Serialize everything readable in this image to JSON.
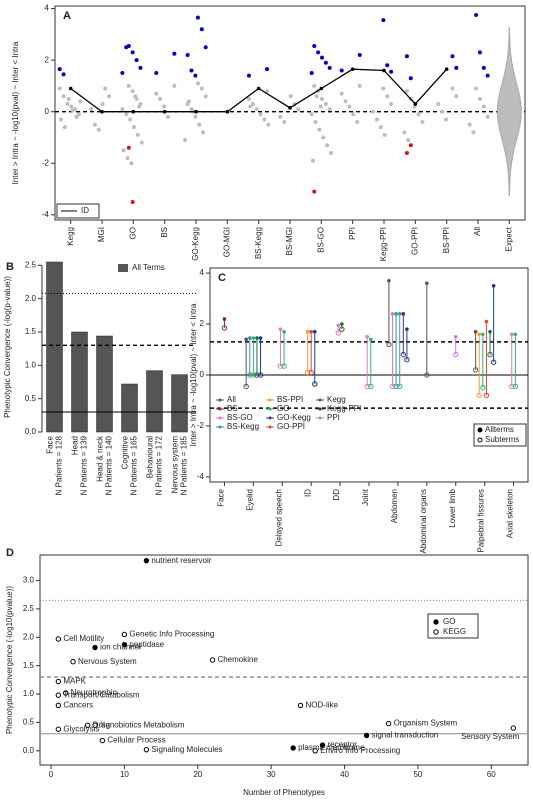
{
  "chart_data": [
    {
      "type": "strip",
      "panel_label": "A",
      "y_label": "Inter > Intra ~ -log10(pval) ~ Inter < Intra",
      "categories": [
        "Kegg",
        "MGI",
        "GO",
        "BS",
        "GO-Kegg",
        "GO-MGI",
        "BS-Kegg",
        "BS-MGI",
        "BS-GO",
        "PPI",
        "Kegg-PPI",
        "GO-PPI",
        "BS-PPI",
        "All",
        "Expect"
      ],
      "colors": {
        "other": "#bdbdbd",
        "high": "#0000cc",
        "low": "#dd1111"
      },
      "groups": [
        {
          "other": [
            0.9,
            0.6,
            0.3,
            0.2,
            0.1,
            -0.1,
            -0.3,
            -0.6,
            0.5,
            0.05,
            -0.2,
            0.4
          ],
          "high": [
            1.65,
            1.45
          ],
          "low": []
        },
        {
          "other": [
            0.9,
            0.6,
            0.1,
            -0.5,
            -0.7,
            0.3
          ],
          "high": [],
          "low": []
        },
        {
          "other": [
            1.0,
            0.8,
            0.5,
            0.3,
            0.1,
            -0.1,
            -0.3,
            -0.6,
            -0.9,
            -1.2,
            -1.5,
            -1.8,
            -2.0,
            0.6,
            0.2
          ],
          "high": [
            2.55,
            2.3,
            2.0,
            1.7,
            1.5,
            2.5
          ],
          "low": [
            -1.4,
            -3.5
          ]
        },
        {
          "other": [
            1.0,
            0.7,
            0.5,
            0.2,
            -0.2
          ],
          "high": [
            2.25,
            1.5
          ],
          "low": []
        },
        {
          "other": [
            1.1,
            0.9,
            0.6,
            0.3,
            0.1,
            -0.2,
            -0.5,
            -0.8,
            -1.1,
            0.4,
            0.0
          ],
          "high": [
            3.65,
            3.2,
            2.5,
            2.2,
            1.6,
            1.4
          ],
          "low": []
        },
        {
          "other": [],
          "high": [],
          "low": []
        },
        {
          "other": [
            0.8,
            0.5,
            0.3,
            0.1,
            -0.1,
            -0.3,
            -0.5,
            0.2
          ],
          "high": [
            1.65,
            1.4
          ],
          "low": []
        },
        {
          "other": [
            0.6,
            0.3,
            0.1,
            -0.2,
            -0.4
          ],
          "high": [],
          "low": []
        },
        {
          "other": [
            1.0,
            0.8,
            0.5,
            0.3,
            0.1,
            -0.1,
            -0.4,
            -0.7,
            -1.0,
            -1.3,
            -1.6,
            -1.9,
            0.6,
            0.2
          ],
          "high": [
            2.55,
            2.3,
            2.1,
            1.9,
            1.7,
            1.5
          ],
          "low": [
            -3.1
          ]
        },
        {
          "other": [
            1.0,
            0.7,
            0.4,
            0.2,
            -0.1,
            -0.4
          ],
          "high": [
            2.2,
            1.6
          ],
          "low": []
        },
        {
          "other": [
            0.9,
            0.6,
            0.3,
            0.0,
            -0.3,
            -0.6,
            -0.9
          ],
          "high": [
            3.55,
            1.8,
            1.55
          ],
          "low": []
        },
        {
          "other": [
            0.8,
            0.5,
            0.2,
            -0.1,
            -0.4,
            -0.8,
            -1.1
          ],
          "high": [
            2.15,
            1.3
          ],
          "low": [
            -1.6,
            -1.3
          ]
        },
        {
          "other": [
            0.9,
            0.6,
            0.3,
            0.0,
            -0.3
          ],
          "high": [
            2.15,
            1.7
          ],
          "low": []
        },
        {
          "other": [
            0.9,
            0.5,
            0.2,
            -0.2,
            -0.5,
            -0.8
          ],
          "high": [
            3.75,
            2.3,
            1.7,
            1.4
          ],
          "low": []
        },
        {
          "other": [],
          "high": [],
          "low": []
        }
      ],
      "series": [
        {
          "name": "ID",
          "color": "#000000",
          "values": [
            0.9,
            0,
            0,
            0,
            0,
            0,
            0.9,
            0.15,
            0.9,
            1.65,
            1.6,
            0.3,
            1.65,
            null,
            null
          ]
        }
      ],
      "hlines": [
        {
          "value": 0,
          "style": "dashed"
        }
      ],
      "ylim": [
        -4.2,
        4.1
      ],
      "yticks": [
        -4,
        -2,
        0,
        2,
        4
      ],
      "legend": "bottom-left"
    },
    {
      "type": "bar",
      "panel_label": "B",
      "y_label": "Phenotypic Convergence (-log(p-value))",
      "categories": [
        "Face",
        "Head",
        "Head & neck",
        "Cognitive",
        "Behavioural",
        "Nervous system"
      ],
      "subtitles": [
        "N Patients = 128",
        "N Patients = 139",
        "N Patients = 140",
        "N Patients = 165",
        "N Patients = 172",
        "N Patients = 185"
      ],
      "values": [
        2.55,
        1.5,
        1.44,
        0.72,
        0.92,
        0.86
      ],
      "color": "#555555",
      "legend_label": "All Terms",
      "hlines": [
        {
          "value": 2.08,
          "style": "dotted"
        },
        {
          "value": 1.3,
          "style": "dashed"
        },
        {
          "value": 0.3,
          "style": "solid"
        }
      ],
      "ylim": [
        0,
        2.55
      ],
      "yticks": [
        {
          "value": 0,
          "label": "0.0"
        },
        {
          "value": 0.5,
          "label": "0.5"
        },
        {
          "value": 1,
          "label": "1.0"
        },
        {
          "value": 1.5,
          "label": "1.5"
        },
        {
          "value": 2,
          "label": "2.0"
        },
        {
          "value": 2.5,
          "label": "2.5"
        }
      ]
    },
    {
      "type": "lollipop",
      "panel_label": "C",
      "y_label": "Inter > Intra ~ -log10(pval) ~ Inter < Intra",
      "categories": [
        "Face",
        "Eyelid",
        "Delayed speech",
        "ID",
        "DD",
        "Joint",
        "Abdomen",
        "Abdominal organs",
        "Lower limb",
        "Palpebral fissures",
        "Axial skeleton"
      ],
      "series": [
        {
          "name": "All",
          "color": "#555555",
          "values": [
            null,
            1.4,
            null,
            null,
            null,
            null,
            3.7,
            3.6,
            null,
            1.7,
            null
          ],
          "subterms": [
            null,
            -0.45,
            null,
            null,
            null,
            null,
            1.2,
            0,
            null,
            0.2,
            null
          ]
        },
        {
          "name": "BS",
          "color": "#8b2e1f",
          "values": [
            2.2,
            null,
            null,
            null,
            null,
            null,
            null,
            null,
            null,
            null,
            null
          ],
          "subterms": [
            1.85,
            null,
            null,
            null,
            null,
            null,
            null,
            null,
            null,
            null,
            null
          ]
        },
        {
          "name": "BS-GO",
          "color": "#e377c2",
          "values": [
            null,
            null,
            1.8,
            null,
            1.95,
            1.5,
            2.4,
            null,
            null,
            null,
            1.6
          ],
          "subterms": [
            null,
            null,
            0.35,
            null,
            1.65,
            -0.45,
            -0.45,
            null,
            null,
            null,
            -0.45
          ]
        },
        {
          "name": "BS-Kegg",
          "color": "#3e8fb0",
          "values": [
            null,
            1.45,
            null,
            null,
            null,
            null,
            2.4,
            null,
            null,
            null,
            null
          ],
          "subterms": [
            null,
            0,
            null,
            null,
            null,
            null,
            -0.45,
            null,
            null,
            null,
            null
          ]
        },
        {
          "name": "BS-PPI",
          "color": "#ff9a33",
          "values": [
            null,
            null,
            null,
            1.7,
            null,
            null,
            null,
            null,
            null,
            1.6,
            null
          ],
          "subterms": [
            null,
            null,
            null,
            0.1,
            null,
            null,
            null,
            null,
            null,
            -0.8,
            null
          ]
        },
        {
          "name": "GO",
          "color": "#33b27a",
          "values": [
            null,
            1.45,
            1.7,
            null,
            null,
            1.4,
            2.4,
            null,
            null,
            1.6,
            1.6
          ],
          "subterms": [
            null,
            0,
            0.35,
            null,
            null,
            -0.45,
            -0.45,
            null,
            null,
            -0.5,
            -0.45
          ]
        },
        {
          "name": "GO-Kegg",
          "color": "#4b2a8a",
          "values": [
            null,
            null,
            null,
            null,
            null,
            null,
            2.4,
            null,
            null,
            null,
            null
          ],
          "subterms": [
            null,
            null,
            null,
            null,
            null,
            null,
            0.8,
            null,
            null,
            null,
            null
          ]
        },
        {
          "name": "GO-PPI",
          "color": "#e8432f",
          "values": [
            null,
            null,
            null,
            1.7,
            null,
            null,
            null,
            null,
            null,
            2.1,
            null
          ],
          "subterms": [
            null,
            null,
            null,
            0.1,
            null,
            null,
            null,
            null,
            null,
            -0.8,
            null
          ]
        },
        {
          "name": "Kegg",
          "color": "#1f6b3a",
          "values": [
            null,
            1.45,
            null,
            null,
            2.0,
            null,
            null,
            null,
            null,
            1.7,
            null
          ],
          "subterms": [
            null,
            0,
            null,
            null,
            1.8,
            null,
            null,
            null,
            null,
            0.8,
            null
          ]
        },
        {
          "name": "Kegg-PPI",
          "color": "#163a8a",
          "values": [
            null,
            1.45,
            null,
            1.7,
            null,
            null,
            1.8,
            null,
            null,
            3.5,
            null
          ],
          "subterms": [
            null,
            0,
            null,
            -0.35,
            null,
            null,
            0.6,
            null,
            null,
            0.5,
            null
          ]
        },
        {
          "name": "PPI",
          "color": "#c77bd6",
          "values": [
            null,
            null,
            null,
            null,
            null,
            null,
            null,
            null,
            1.5,
            null,
            null
          ],
          "subterms": [
            null,
            null,
            null,
            null,
            null,
            null,
            null,
            null,
            0.8,
            null,
            null
          ]
        }
      ],
      "marker_legend": [
        "Allterms",
        "Subterms"
      ],
      "hlines": [
        {
          "value": 1.3,
          "style": "dashed"
        },
        {
          "value": -1.3,
          "style": "dashed"
        },
        {
          "value": 0,
          "style": "solid"
        }
      ],
      "ylim": [
        -4.2,
        4.2
      ],
      "yticks": [
        -4,
        -2,
        0,
        2,
        4
      ]
    },
    {
      "type": "scatter",
      "panel_label": "D",
      "x_label": "Number of Phenotypes",
      "y_label": "Phenotypic Convergence (-log10(pvalue))",
      "series": [
        {
          "name": "GO",
          "filled": true,
          "x": [
            13,
            10,
            6,
            43,
            33,
            37
          ],
          "values": [
            3.35,
            1.87,
            1.82,
            0.27,
            0.05,
            0.1
          ],
          "labels": [
            "nutrient reservoir",
            "peptidase",
            "ion channel",
            "signal transduction",
            "plasma membrane",
            "receptor"
          ]
        },
        {
          "name": "KEGG",
          "filled": false,
          "x": [
            1,
            10,
            3,
            22,
            1,
            2,
            1,
            1,
            34,
            5,
            6,
            1,
            7,
            13,
            46,
            63,
            36
          ],
          "values": [
            1.97,
            2.05,
            1.57,
            1.6,
            1.22,
            1.02,
            0.98,
            0.8,
            0.8,
            0.45,
            0.45,
            0.38,
            0.18,
            0.02,
            0.48,
            0.4,
            0.0
          ],
          "labels": [
            "Cell Motility",
            "Genetic Info Processing",
            "Nervous System",
            "Chemokine",
            "MAPK",
            "Neurotrophin",
            "Transport/Catabolism",
            "Cancers",
            "NOD-like",
            "Drug",
            "Xenobiotics Metabolism",
            "Glycolysis",
            "Cellular Process",
            "Signaling Molecules",
            "Organism System",
            "Sensory System",
            "Enviro Info Processing"
          ]
        }
      ],
      "hlines": [
        {
          "value": 2.65,
          "style": "dotted"
        },
        {
          "value": 1.3,
          "style": "dashed"
        },
        {
          "value": 0.3,
          "style": "solid"
        }
      ],
      "xlim": [
        -1.5,
        65
      ],
      "xticks": [
        0,
        10,
        20,
        30,
        40,
        50,
        60
      ],
      "ylim": [
        -0.25,
        3.45
      ],
      "yticks": [
        {
          "value": 0,
          "label": "0.0"
        },
        {
          "value": 0.5,
          "label": "0.5"
        },
        {
          "value": 1,
          "label": "1.0"
        },
        {
          "value": 1.5,
          "label": "1.5"
        },
        {
          "value": 2,
          "label": "2.0"
        },
        {
          "value": 2.5,
          "label": "2.5"
        },
        {
          "value": 3,
          "label": "3.0"
        }
      ]
    }
  ]
}
